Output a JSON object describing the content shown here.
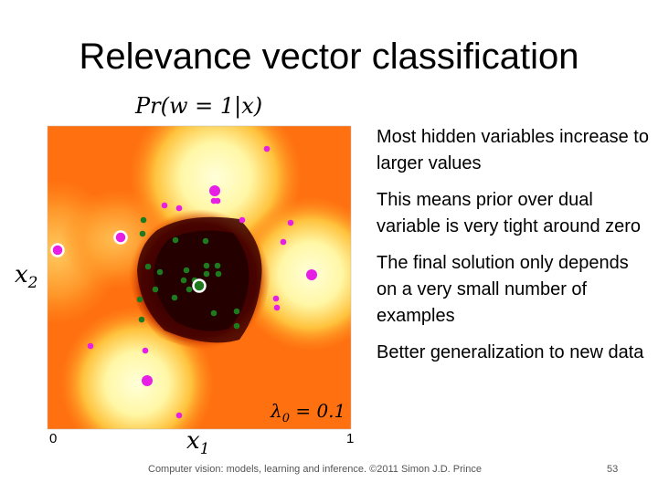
{
  "slide": {
    "title": "Relevance vector classification",
    "figure": {
      "plot_title": "Pr(w = 1|x)",
      "x_label": "x",
      "x_subscript": "1",
      "y_label": "x",
      "y_subscript": "2",
      "lambda_label": "λ",
      "lambda_subscript": "0",
      "lambda_value": " = 0.1",
      "x_tick_min": "0",
      "x_tick_max": "1",
      "colors": {
        "low": "#2a0000",
        "mid": "#ff6a00",
        "high": "#ffffcc",
        "class1_point": "#e61ee6",
        "class0_point": "#1e7a1e",
        "relevance_ring": "#ffffff"
      }
    },
    "bullets": [
      "Most hidden variables increase to larger values",
      "This means prior over dual variable is very tight around zero",
      "The final solution only depends on a very small number of examples",
      "Better generalization to new data"
    ],
    "footer": "Computer vision: models, learning and inference.  ©2011 Simon J.D. Prince",
    "page_number": "53"
  }
}
